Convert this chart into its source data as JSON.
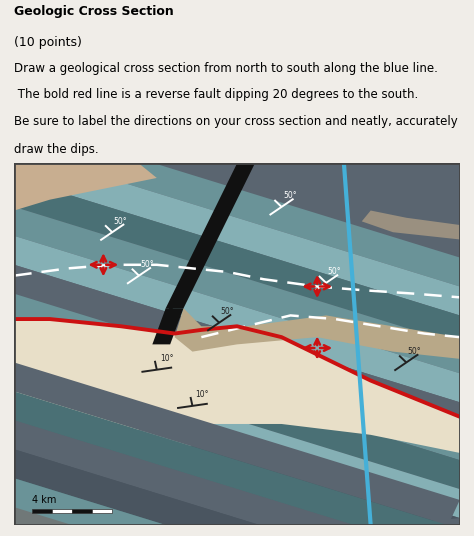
{
  "title": "Geologic Cross Section",
  "subtitle": "(10 points)",
  "desc1": "Draw a geological cross section from north to south along the blue line.",
  "desc2": " The bold red line is a reverse fault dipping 20 degrees to the south.",
  "desc3": "Be sure to label the directions on your cross section and neatly, accurately",
  "desc4": "draw the dips.",
  "bg_color": "#f0ede8",
  "blue_line_color": "#45b0d8",
  "red_fault_color": "#cc1111",
  "colors": {
    "tan_upper_left": "#c8ae90",
    "blue_gray_bg": "#5a6570",
    "teal_light": "#85b0b5",
    "teal_mid": "#6a9398",
    "teal_dark": "#4a7075",
    "gray_band": "#606870",
    "cream": "#ddd0b8",
    "cream_light": "#e8dfc8",
    "tan_lower": "#b8a080",
    "gray_lower_light": "#9aa0a0",
    "gray_lower_dark": "#707878",
    "gray_lower_mid": "#808888",
    "dark_band": "#4a5560",
    "tan_lens_upper": "#9a9080",
    "tan_lens_lower": "#b8a888"
  }
}
